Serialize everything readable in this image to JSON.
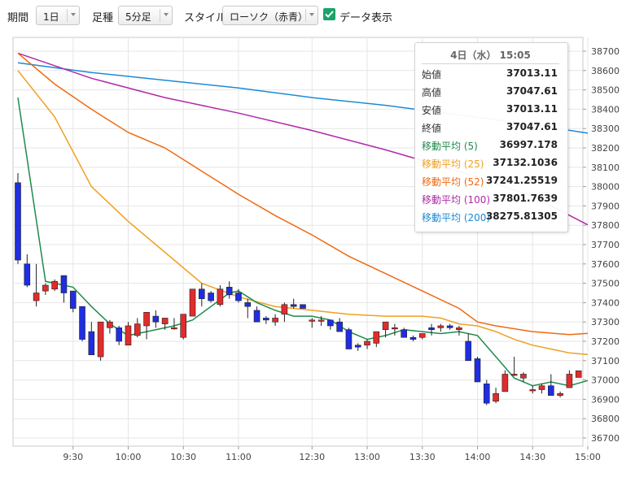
{
  "toolbar": {
    "period_label": "期間",
    "period_value": "1日",
    "interval_label": "足種",
    "interval_value": "5分足",
    "style_label": "スタイル",
    "style_value": "ローソク（赤青）",
    "data_display_label": "データ表示",
    "data_display_checked": true
  },
  "tooltip": {
    "header": "4日（水） 15:05",
    "rows": [
      {
        "label": "始値",
        "value": "37013.11",
        "color": "#333333"
      },
      {
        "label": "高値",
        "value": "37047.61",
        "color": "#333333"
      },
      {
        "label": "安値",
        "value": "37013.11",
        "color": "#333333"
      },
      {
        "label": "終値",
        "value": "37047.61",
        "color": "#333333"
      },
      {
        "label": "移動平均 (5)",
        "value": "36997.178",
        "color": "#1f8a4c"
      },
      {
        "label": "移動平均 (25)",
        "value": "37132.1036",
        "color": "#f0a020"
      },
      {
        "label": "移動平均 (52)",
        "value": "37241.25519",
        "color": "#ee6a12"
      },
      {
        "label": "移動平均 (100)",
        "value": "37801.7639",
        "color": "#b02aa8"
      },
      {
        "label": "移動平均 (200)",
        "value": "38275.81305",
        "color": "#1c8ad6"
      }
    ]
  },
  "chart_data": {
    "type": "candlestick",
    "y_ticks": [
      "36700",
      "36800",
      "36900",
      "37000",
      "37100",
      "37200",
      "37300",
      "37400",
      "37500",
      "37600",
      "37700",
      "37800",
      "37900",
      "38000",
      "38100",
      "38200",
      "38300",
      "38400",
      "38500",
      "38600",
      "38700"
    ],
    "ylim": [
      36700,
      38700
    ],
    "x_ticks": [
      {
        "label": "9:30",
        "index": 6
      },
      {
        "label": "10:00",
        "index": 12
      },
      {
        "label": "10:30",
        "index": 18
      },
      {
        "label": "11:00",
        "index": 24
      },
      {
        "label": "12:30",
        "index": 32
      },
      {
        "label": "13:00",
        "index": 38
      },
      {
        "label": "13:30",
        "index": 44
      },
      {
        "label": "14:00",
        "index": 50
      },
      {
        "label": "14:30",
        "index": 56
      },
      {
        "label": "15:00",
        "index": 62
      }
    ],
    "gridlines": true,
    "candles": [
      [
        38020,
        38070,
        37600,
        37620
      ],
      [
        37600,
        37650,
        37480,
        37490
      ],
      [
        37410,
        37600,
        37380,
        37450
      ],
      [
        37460,
        37500,
        37440,
        37490
      ],
      [
        37470,
        37520,
        37460,
        37510
      ],
      [
        37540,
        37540,
        37400,
        37450
      ],
      [
        37460,
        37460,
        37350,
        37370
      ],
      [
        37380,
        37380,
        37200,
        37210
      ],
      [
        37250,
        37300,
        37130,
        37130
      ],
      [
        37120,
        37290,
        37100,
        37300
      ],
      [
        37270,
        37310,
        37240,
        37300
      ],
      [
        37270,
        37280,
        37180,
        37200
      ],
      [
        37180,
        37300,
        37180,
        37280
      ],
      [
        37230,
        37320,
        37220,
        37290
      ],
      [
        37280,
        37350,
        37210,
        37350
      ],
      [
        37330,
        37360,
        37270,
        37300
      ],
      [
        37290,
        37320,
        37260,
        37320
      ],
      [
        37270,
        37320,
        37260,
        37270
      ],
      [
        37220,
        37340,
        37210,
        37340
      ],
      [
        37330,
        37470,
        37330,
        37470
      ],
      [
        37470,
        37500,
        37380,
        37420
      ],
      [
        37450,
        37460,
        37400,
        37410
      ],
      [
        37390,
        37490,
        37380,
        37470
      ],
      [
        37480,
        37510,
        37420,
        37440
      ],
      [
        37450,
        37470,
        37400,
        37410
      ],
      [
        37400,
        37420,
        37320,
        37380
      ],
      [
        37360,
        37380,
        37300,
        37300
      ],
      [
        37320,
        37330,
        37290,
        37310
      ],
      [
        37300,
        37340,
        37280,
        37320
      ],
      [
        37340,
        37400,
        37300,
        37390
      ],
      [
        37390,
        37420,
        37370,
        37380
      ],
      [
        37390,
        37390,
        37370,
        37370
      ],
      [
        37310,
        37320,
        37270,
        37310
      ],
      [
        37310,
        37330,
        37280,
        37310
      ],
      [
        37310,
        37310,
        37260,
        37280
      ],
      [
        37300,
        37320,
        37250,
        37250
      ],
      [
        37260,
        37270,
        37160,
        37160
      ],
      [
        37180,
        37190,
        37150,
        37170
      ],
      [
        37180,
        37210,
        37160,
        37200
      ],
      [
        37190,
        37250,
        37170,
        37250
      ],
      [
        37260,
        37300,
        37220,
        37300
      ],
      [
        37270,
        37290,
        37230,
        37270
      ],
      [
        37260,
        37270,
        37220,
        37220
      ],
      [
        37220,
        37230,
        37200,
        37210
      ],
      [
        37220,
        37240,
        37210,
        37240
      ],
      [
        37270,
        37290,
        37230,
        37260
      ],
      [
        37270,
        37290,
        37250,
        37280
      ],
      [
        37280,
        37290,
        37260,
        37270
      ],
      [
        37260,
        37280,
        37230,
        37270
      ],
      [
        37200,
        37240,
        37100,
        37100
      ],
      [
        37110,
        37120,
        36990,
        36990
      ],
      [
        36980,
        37000,
        36870,
        36880
      ],
      [
        36890,
        36960,
        36880,
        36930
      ],
      [
        36940,
        37050,
        36940,
        37030
      ],
      [
        37030,
        37120,
        37020,
        37030
      ],
      [
        37010,
        37040,
        36990,
        37030
      ],
      [
        36950,
        36970,
        36930,
        36950
      ],
      [
        36950,
        36980,
        36930,
        36970
      ],
      [
        36970,
        37030,
        36930,
        36920
      ],
      [
        36920,
        36940,
        36910,
        36930
      ],
      [
        36960,
        37050,
        36960,
        37030
      ],
      [
        37013.11,
        37047.61,
        37013.11,
        37047.61
      ]
    ],
    "series": [
      {
        "name": "移動平均 (5)",
        "color": "#1f8a4c",
        "points": [
          [
            0,
            38460
          ],
          [
            3,
            37510
          ],
          [
            5,
            37490
          ],
          [
            6,
            37480
          ],
          [
            8,
            37380
          ],
          [
            10,
            37290
          ],
          [
            12,
            37230
          ],
          [
            14,
            37250
          ],
          [
            17,
            37280
          ],
          [
            19,
            37310
          ],
          [
            21,
            37380
          ],
          [
            23,
            37450
          ],
          [
            24,
            37460
          ],
          [
            26,
            37400
          ],
          [
            28,
            37360
          ],
          [
            30,
            37330
          ],
          [
            32,
            37330
          ],
          [
            34,
            37310
          ],
          [
            36,
            37250
          ],
          [
            38,
            37210
          ],
          [
            40,
            37230
          ],
          [
            42,
            37260
          ],
          [
            44,
            37250
          ],
          [
            46,
            37240
          ],
          [
            48,
            37250
          ],
          [
            50,
            37230
          ],
          [
            52,
            37120
          ],
          [
            54,
            37010
          ],
          [
            56,
            36970
          ],
          [
            58,
            36990
          ],
          [
            60,
            36970
          ],
          [
            62,
            36997
          ]
        ]
      },
      {
        "name": "移動平均 (25)",
        "color": "#f0a020",
        "points": [
          [
            0,
            38600
          ],
          [
            4,
            38360
          ],
          [
            8,
            38000
          ],
          [
            12,
            37820
          ],
          [
            16,
            37660
          ],
          [
            20,
            37500
          ],
          [
            24,
            37430
          ],
          [
            28,
            37380
          ],
          [
            32,
            37360
          ],
          [
            36,
            37340
          ],
          [
            40,
            37330
          ],
          [
            44,
            37330
          ],
          [
            46,
            37320
          ],
          [
            48,
            37290
          ],
          [
            50,
            37280
          ],
          [
            52,
            37250
          ],
          [
            54,
            37210
          ],
          [
            56,
            37180
          ],
          [
            58,
            37160
          ],
          [
            60,
            37140
          ],
          [
            62,
            37132
          ]
        ]
      },
      {
        "name": "移動平均 (52)",
        "color": "#ee6a12",
        "points": [
          [
            0,
            38690
          ],
          [
            4,
            38530
          ],
          [
            8,
            38400
          ],
          [
            12,
            38280
          ],
          [
            16,
            38200
          ],
          [
            20,
            38080
          ],
          [
            24,
            37960
          ],
          [
            28,
            37850
          ],
          [
            32,
            37750
          ],
          [
            36,
            37640
          ],
          [
            40,
            37550
          ],
          [
            44,
            37460
          ],
          [
            48,
            37370
          ],
          [
            50,
            37300
          ],
          [
            52,
            37280
          ],
          [
            56,
            37250
          ],
          [
            60,
            37235
          ],
          [
            62,
            37241
          ]
        ]
      },
      {
        "name": "移動平均 (100)",
        "color": "#b02aa8",
        "points": [
          [
            0,
            38690
          ],
          [
            8,
            38560
          ],
          [
            16,
            38460
          ],
          [
            24,
            38380
          ],
          [
            32,
            38290
          ],
          [
            40,
            38190
          ],
          [
            48,
            38080
          ],
          [
            56,
            37950
          ],
          [
            62,
            37802
          ]
        ]
      },
      {
        "name": "移動平均 (200)",
        "color": "#1c8ad6",
        "points": [
          [
            0,
            38640
          ],
          [
            8,
            38590
          ],
          [
            16,
            38550
          ],
          [
            24,
            38510
          ],
          [
            32,
            38460
          ],
          [
            40,
            38420
          ],
          [
            48,
            38370
          ],
          [
            56,
            38320
          ],
          [
            62,
            38276
          ]
        ]
      }
    ],
    "up_color": "#e12c2c",
    "down_color": "#1f2ee0"
  }
}
